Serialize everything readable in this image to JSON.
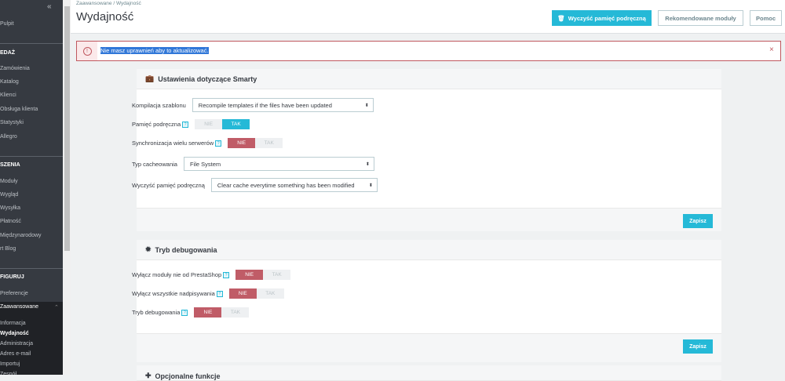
{
  "sidebar": {
    "collapse_icon": "double-chevron-left",
    "items": [
      {
        "label": "Pulpit",
        "type": "item"
      },
      {
        "label": "EDAŻ",
        "type": "head"
      },
      {
        "label": "Zamówienia",
        "type": "item"
      },
      {
        "label": "Katalog",
        "type": "item"
      },
      {
        "label": "Klienci",
        "type": "item"
      },
      {
        "label": "Obsługa klienta",
        "type": "item"
      },
      {
        "label": "Statystyki",
        "type": "item"
      },
      {
        "label": "Allegro",
        "type": "item"
      },
      {
        "label": "SZENIA",
        "type": "head"
      },
      {
        "label": "Moduły",
        "type": "item"
      },
      {
        "label": "Wygląd",
        "type": "item"
      },
      {
        "label": "Wysyłka",
        "type": "item"
      },
      {
        "label": "Płatność",
        "type": "item"
      },
      {
        "label": "Międzynarodowy",
        "type": "item"
      },
      {
        "label": "rt Blog",
        "type": "item"
      },
      {
        "label": "FIGURUJ",
        "type": "head"
      },
      {
        "label": "Preferencje",
        "type": "item"
      },
      {
        "label": "Zaawansowane",
        "type": "item"
      },
      {
        "label": "Informacja",
        "type": "sub"
      },
      {
        "label": "Wydajność",
        "type": "sub"
      },
      {
        "label": "Administracja",
        "type": "sub"
      },
      {
        "label": "Adres e-mail",
        "type": "sub"
      },
      {
        "label": "Importuj",
        "type": "sub"
      },
      {
        "label": "Zespół",
        "type": "sub"
      }
    ]
  },
  "header": {
    "breadcrumb": [
      "Zaawansowane",
      "Wydajność"
    ],
    "breadcrumb_sep": "/",
    "title": "Wydajność",
    "clear_cache_button": "Wyczyść pamięć podręczną",
    "recommended_button": "Rekomendowane moduły",
    "help_button": "Pomoc"
  },
  "alert": {
    "text": "Nie masz uprawnień aby to aktualizować.",
    "icon": "exclamation-circle",
    "close": "×"
  },
  "smarty": {
    "title": "Ustawienia dotyczące Smarty",
    "icon": "briefcase",
    "compile_label": "Kompilacja szablonu",
    "compile_value": "Recompile templates if the files have been updated",
    "cache_label": "Pamięć podręczna",
    "cache_value": "TAK",
    "multi_label": "Synchronizacja wielu serwerów",
    "multi_value": "NIE",
    "cache_type_label": "Typ cacheowania",
    "cache_type_value": "File System",
    "clear_label": "Wyczyść pamięć podręczną",
    "clear_value": "Clear cache everytime something has been modified",
    "save": "Zapisz"
  },
  "debug": {
    "title": "Tryb debugowania",
    "icon": "bug",
    "nonps_label": "Wyłącz moduły nie od PrestaShop",
    "nonps_value": "NIE",
    "overrides_label": "Wyłącz wszystkie nadpisywania",
    "overrides_value": "NIE",
    "debug_label": "Tryb debugowania",
    "debug_value": "NIE",
    "save": "Zapisz"
  },
  "optional": {
    "title": "Opcjonalne funkcje",
    "icon": "puzzle"
  },
  "switch": {
    "no": "NIE",
    "yes": "TAK",
    "help": "?"
  },
  "colors": {
    "primary": "#25b9d7",
    "danger": "#c05c67",
    "sidebar": "#363a41"
  }
}
